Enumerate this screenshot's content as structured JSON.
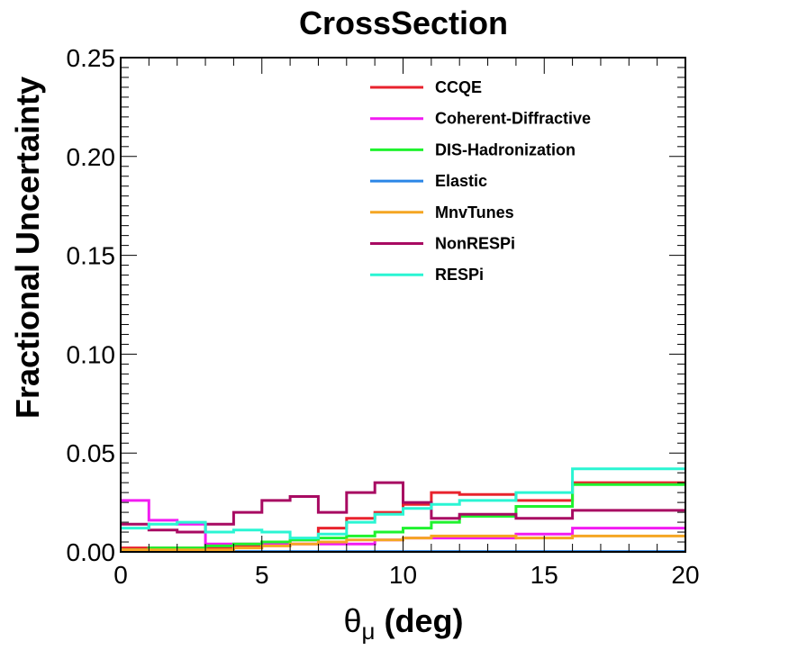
{
  "chart_data": {
    "type": "line",
    "style": "step-histogram",
    "title": "CrossSection",
    "xlabel_symbol": "θ",
    "xlabel_subscript": "μ",
    "xlabel_unit": " (deg)",
    "ylabel": "Fractional Uncertainty",
    "xlim": [
      0,
      20
    ],
    "ylim": [
      0,
      0.25
    ],
    "x_ticks": [
      0,
      5,
      10,
      15,
      20
    ],
    "x_tick_labels": [
      "0",
      "5",
      "10",
      "15",
      "20"
    ],
    "y_ticks": [
      0,
      0.05,
      0.1,
      0.15,
      0.2,
      0.25
    ],
    "y_tick_labels": [
      "0.00",
      "0.05",
      "0.10",
      "0.15",
      "0.20",
      "0.25"
    ],
    "grid": false,
    "legend_position": "top-right",
    "bin_edges": [
      0,
      1,
      2,
      3,
      4,
      5,
      6,
      7,
      8,
      9,
      10,
      11,
      12,
      14,
      16,
      20
    ],
    "series": [
      {
        "name": "CCQE",
        "color": "#e8232d",
        "values": [
          0.002,
          0.002,
          0.002,
          0.002,
          0.003,
          0.005,
          0.006,
          0.012,
          0.017,
          0.02,
          0.024,
          0.03,
          0.029,
          0.026,
          0.035
        ]
      },
      {
        "name": "Coherent-Diffractive",
        "color": "#f21bf2",
        "values": [
          0.026,
          0.016,
          0.014,
          0.004,
          0.004,
          0.004,
          0.004,
          0.004,
          0.004,
          0.006,
          0.007,
          0.007,
          0.007,
          0.009,
          0.012
        ]
      },
      {
        "name": "DIS-Hadronization",
        "color": "#1ff22e",
        "values": [
          0.001,
          0.002,
          0.002,
          0.003,
          0.004,
          0.005,
          0.006,
          0.007,
          0.008,
          0.01,
          0.012,
          0.015,
          0.018,
          0.023,
          0.034
        ]
      },
      {
        "name": "Elastic",
        "color": "#2b86e6",
        "values": [
          0.0002,
          0.0002,
          0.0002,
          0.0002,
          0.0002,
          0.0002,
          0.0002,
          0.0002,
          0.0002,
          0.0002,
          0.0002,
          0.0002,
          0.0002,
          0.0002,
          0.0002
        ]
      },
      {
        "name": "MnvTunes",
        "color": "#f5a623",
        "values": [
          0.001,
          0.001,
          0.001,
          0.001,
          0.002,
          0.003,
          0.004,
          0.005,
          0.006,
          0.006,
          0.007,
          0.008,
          0.008,
          0.007,
          0.008
        ]
      },
      {
        "name": "NonRESPi",
        "color": "#a80a62",
        "values": [
          0.014,
          0.011,
          0.01,
          0.014,
          0.02,
          0.026,
          0.028,
          0.02,
          0.03,
          0.035,
          0.025,
          0.017,
          0.019,
          0.017,
          0.021
        ]
      },
      {
        "name": "RESPi",
        "color": "#2af5d3",
        "values": [
          0.012,
          0.014,
          0.015,
          0.01,
          0.011,
          0.01,
          0.007,
          0.009,
          0.015,
          0.019,
          0.022,
          0.024,
          0.026,
          0.03,
          0.042
        ]
      }
    ]
  }
}
